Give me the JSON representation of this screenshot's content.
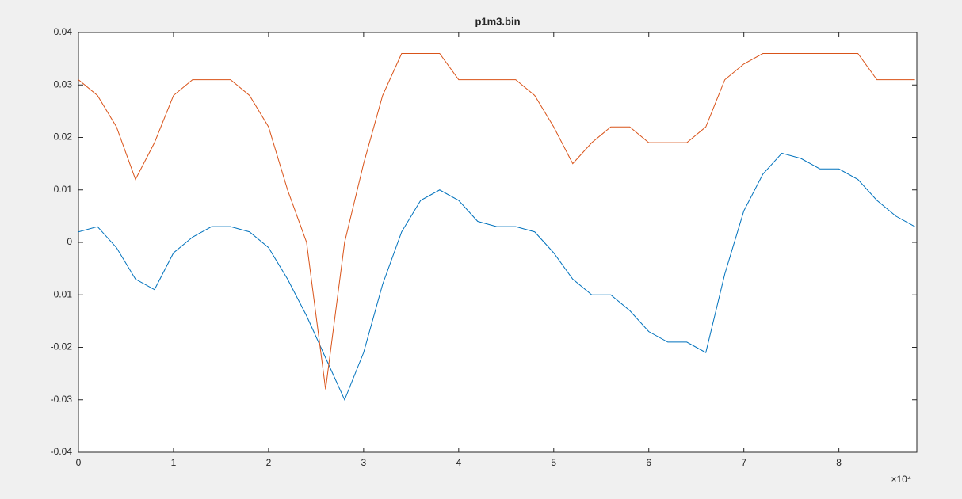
{
  "chart_data": {
    "type": "line",
    "title": "p1m3.bin",
    "x": [
      0,
      2000,
      4000,
      6000,
      8000,
      10000,
      12000,
      14000,
      16000,
      18000,
      20000,
      22000,
      24000,
      26000,
      28000,
      30000,
      32000,
      34000,
      36000,
      38000,
      40000,
      42000,
      44000,
      46000,
      48000,
      50000,
      52000,
      54000,
      56000,
      58000,
      60000,
      62000,
      64000,
      66000,
      68000,
      70000,
      72000,
      74000,
      76000,
      78000,
      80000,
      82000,
      84000,
      86000,
      88000
    ],
    "series": [
      {
        "color": "#0072bd",
        "values": [
          0.002,
          0.003,
          -0.001,
          -0.007,
          -0.009,
          -0.002,
          0.001,
          0.003,
          0.003,
          0.002,
          -0.001,
          -0.007,
          -0.014,
          -0.022,
          -0.03,
          -0.021,
          -0.008,
          0.002,
          0.008,
          0.01,
          0.008,
          0.004,
          0.003,
          0.003,
          0.002,
          -0.002,
          -0.007,
          -0.01,
          -0.01,
          -0.013,
          -0.017,
          -0.019,
          -0.019,
          -0.021,
          -0.006,
          0.006,
          0.013,
          0.017,
          0.016,
          0.014,
          0.014,
          0.012,
          0.008,
          0.005,
          0.003
        ]
      },
      {
        "color": "#d95319",
        "values": [
          0.031,
          0.028,
          0.022,
          0.012,
          0.019,
          0.028,
          0.031,
          0.031,
          0.031,
          0.028,
          0.022,
          0.01,
          0.0,
          -0.028,
          0.0,
          0.015,
          0.028,
          0.036,
          0.036,
          0.036,
          0.031,
          0.031,
          0.031,
          0.031,
          0.028,
          0.022,
          0.015,
          0.019,
          0.022,
          0.022,
          0.019,
          0.019,
          0.019,
          0.022,
          0.031,
          0.034,
          0.036,
          0.036,
          0.036,
          0.036,
          0.036,
          0.036,
          0.031,
          0.031,
          0.031
        ]
      }
    ],
    "xlim": [
      0,
      88200
    ],
    "xticks": [
      0,
      {
        "value": 10000,
        "label": "1"
      },
      {
        "value": 20000,
        "label": "2"
      },
      {
        "value": 30000,
        "label": "3"
      },
      {
        "value": 40000,
        "label": "4"
      },
      {
        "value": 50000,
        "label": "5"
      },
      {
        "value": 60000,
        "label": "6"
      },
      {
        "value": 70000,
        "label": "7"
      },
      {
        "value": 80000,
        "label": "8"
      }
    ],
    "x_exponent_label": "×10⁴",
    "ylim": [
      -0.04,
      0.04
    ],
    "yticks": [
      -0.04,
      -0.03,
      -0.02,
      -0.01,
      0,
      0.01,
      0.02,
      0.03,
      0.04
    ],
    "grid": false
  }
}
